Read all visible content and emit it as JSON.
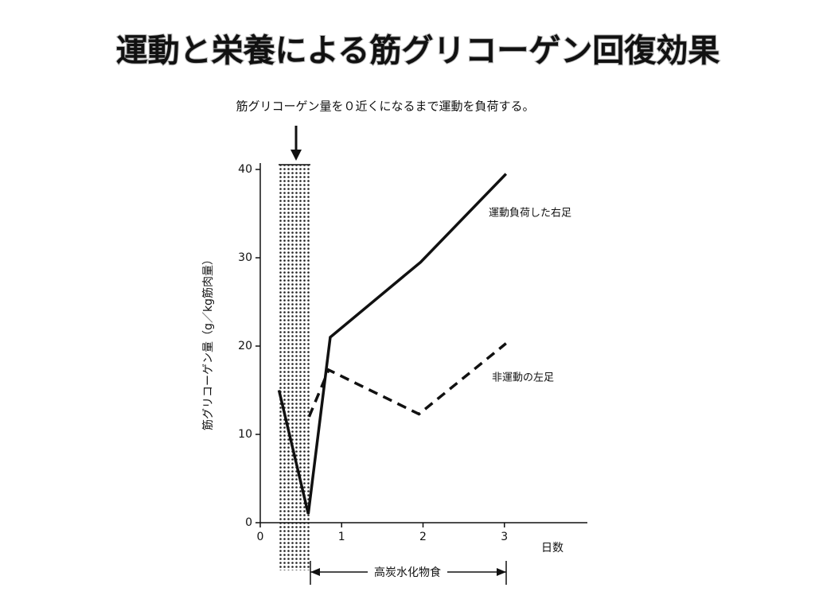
{
  "chart_data": {
    "type": "line",
    "title": "運動と栄養による筋グリコーゲン回復効果",
    "annotation": "筋グリコーゲン量を０近くになるまで運動を負荷する。",
    "y_label": "筋グリコーゲン量（g／kg筋肉量）",
    "x_label": "日数",
    "period_label": "高炭水化物食",
    "xlim": [
      0,
      4
    ],
    "xticks": [
      0,
      1,
      2,
      3
    ],
    "ylim": [
      0,
      40
    ],
    "yticks": [
      0,
      10,
      20,
      30,
      40
    ],
    "series": [
      {
        "name": "運動負荷した右足",
        "color": "#111111",
        "dash": false,
        "x": [
          0.23,
          0.59,
          0.86,
          1.97,
          3.02
        ],
        "values": [
          15,
          1,
          21,
          29.5,
          39.5
        ]
      },
      {
        "name": "非運動の左足",
        "color": "#111111",
        "dash": true,
        "x": [
          0.6,
          0.84,
          1.95,
          3.02
        ],
        "values": [
          12,
          17.3,
          12.3,
          20.3
        ]
      }
    ]
  }
}
